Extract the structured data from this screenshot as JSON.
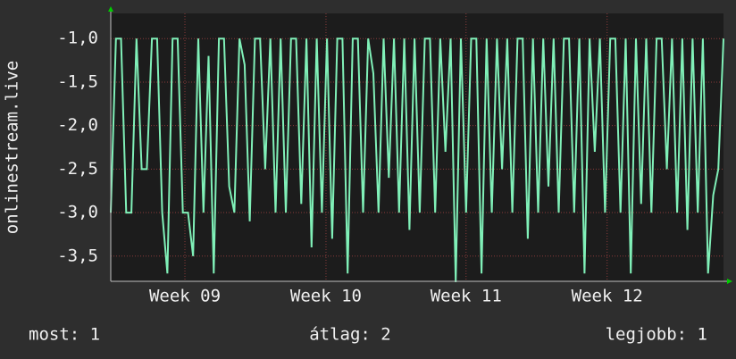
{
  "chart_data": {
    "type": "line",
    "ylabel": "onlinestream.live",
    "color": "#80f0b8",
    "grid": true,
    "values": [
      -3.0,
      -1.0,
      -1.0,
      -3.0,
      -3.0,
      -1.0,
      -2.5,
      -2.5,
      -1.0,
      -1.0,
      -3.0,
      -3.7,
      -1.0,
      -1.0,
      -3.0,
      -3.0,
      -3.5,
      -1.0,
      -3.0,
      -1.2,
      -3.7,
      -1.0,
      -1.0,
      -2.7,
      -3.0,
      -1.0,
      -1.3,
      -3.1,
      -1.0,
      -1.0,
      -2.5,
      -1.0,
      -3.0,
      -1.0,
      -3.0,
      -1.0,
      -1.0,
      -2.9,
      -1.0,
      -3.4,
      -1.0,
      -3.0,
      -1.0,
      -3.3,
      -1.0,
      -1.0,
      -3.7,
      -1.0,
      -1.0,
      -3.0,
      -1.0,
      -1.4,
      -3.0,
      -1.0,
      -2.6,
      -1.0,
      -3.0,
      -1.0,
      -3.2,
      -1.0,
      -3.0,
      -1.0,
      -1.0,
      -3.0,
      -1.0,
      -2.3,
      -1.0,
      -3.8,
      -1.0,
      -3.0,
      -1.0,
      -1.0,
      -3.7,
      -1.0,
      -3.0,
      -1.0,
      -2.5,
      -1.0,
      -3.0,
      -1.0,
      -1.0,
      -3.3,
      -1.0,
      -3.0,
      -1.0,
      -2.7,
      -1.0,
      -3.0,
      -1.0,
      -1.0,
      -3.0,
      -1.0,
      -3.7,
      -1.0,
      -2.3,
      -1.0,
      -3.0,
      -1.0,
      -1.0,
      -3.0,
      -1.0,
      -3.7,
      -1.0,
      -2.9,
      -1.0,
      -3.0,
      -1.0,
      -1.0,
      -2.5,
      -1.0,
      -3.0,
      -1.0,
      -3.2,
      -1.0,
      -3.0,
      -1.0,
      -3.7,
      -2.8,
      -2.5,
      -1.0
    ],
    "xlim": [
      0,
      119
    ],
    "xticks": [
      {
        "value": 14.4,
        "label": "Week 09"
      },
      {
        "value": 41.8,
        "label": "Week 10"
      },
      {
        "value": 69.0,
        "label": "Week 11"
      },
      {
        "value": 96.4,
        "label": "Week 12"
      }
    ],
    "ylim": [
      -3.79,
      -0.71
    ],
    "yticks": [
      {
        "value": -1.0,
        "label": "-1,0"
      },
      {
        "value": -1.5,
        "label": "-1,5"
      },
      {
        "value": -2.0,
        "label": "-2,0"
      },
      {
        "value": -2.5,
        "label": "-2,5"
      },
      {
        "value": -3.0,
        "label": "-3,0"
      },
      {
        "value": -3.5,
        "label": "-3,5"
      }
    ],
    "footer": [
      "most: 1",
      "átlag: 2",
      "legjobb: 1"
    ]
  }
}
